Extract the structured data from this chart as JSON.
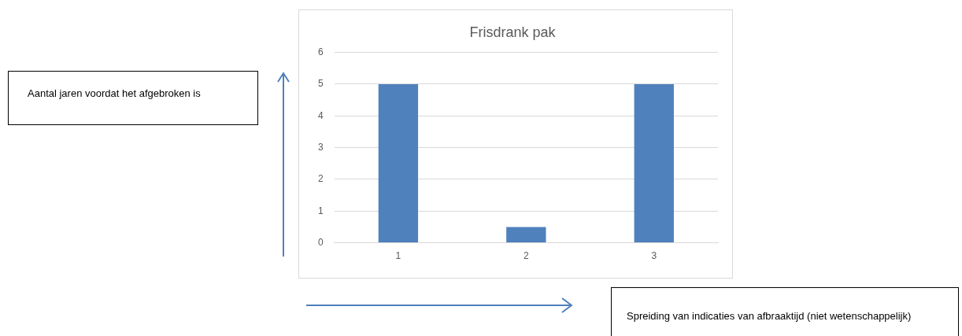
{
  "chart_data": {
    "type": "bar",
    "title": "Frisdrank pak",
    "annotations": [
      "Aantal jaren voordat het afgebroken is",
      "Spreiding van indicaties van afbraaktijd (niet wetenschappelijk)"
    ],
    "categories": [
      "1",
      "2",
      "3"
    ],
    "values": [
      5,
      0.5,
      5
    ],
    "color": "#4f81bd",
    "ylim": [
      0,
      6
    ],
    "yticks": [
      0,
      1,
      2,
      3,
      4,
      5,
      6
    ],
    "grid": "y"
  }
}
